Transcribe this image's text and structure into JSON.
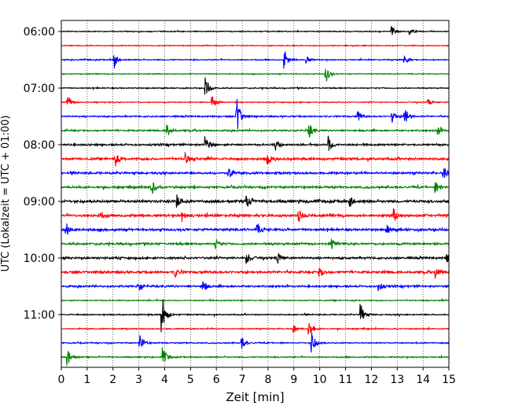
{
  "chart_data": {
    "type": "line",
    "title": "",
    "xlabel": "Zeit  [min]",
    "ylabel": "UTC (Lokalzeit = UTC + 01:00)",
    "xlim": [
      0,
      15
    ],
    "x_ticks": [
      "0",
      "1",
      "2",
      "3",
      "4",
      "5",
      "6",
      "7",
      "8",
      "9",
      "10",
      "11",
      "12",
      "13",
      "14",
      "15"
    ],
    "y_tick_labels": [
      "06:00",
      "07:00",
      "08:00",
      "09:00",
      "10:00",
      "11:00"
    ],
    "grid": "vertical-dotted",
    "trace_colors": [
      "#000000",
      "#ff0000",
      "#0000ff",
      "#008000"
    ],
    "traces": [
      {
        "start": "06:00",
        "amp": 0.22,
        "events": [
          [
            12.8,
            0.6
          ],
          [
            13.5,
            0.4
          ]
        ]
      },
      {
        "start": "06:15",
        "amp": 0.2,
        "events": []
      },
      {
        "start": "06:30",
        "amp": 0.25,
        "events": [
          [
            2.05,
            1.0
          ],
          [
            8.65,
            1.0
          ],
          [
            9.5,
            0.4
          ],
          [
            13.3,
            0.6
          ]
        ]
      },
      {
        "start": "06:45",
        "amp": 0.2,
        "events": [
          [
            10.25,
            1.0
          ]
        ]
      },
      {
        "start": "07:00",
        "amp": 0.25,
        "events": [
          [
            5.6,
            1.2
          ]
        ]
      },
      {
        "start": "07:15",
        "amp": 0.22,
        "events": [
          [
            0.25,
            0.8
          ],
          [
            5.85,
            0.7
          ],
          [
            14.2,
            0.4
          ]
        ]
      },
      {
        "start": "07:30",
        "amp": 0.35,
        "events": [
          [
            6.8,
            2.5
          ],
          [
            11.5,
            0.6
          ],
          [
            13.3,
            1.0
          ],
          [
            12.8,
            0.7
          ]
        ]
      },
      {
        "start": "07:45",
        "amp": 0.38,
        "events": [
          [
            4.1,
            0.8
          ],
          [
            9.6,
            0.7
          ],
          [
            14.6,
            0.5
          ]
        ]
      },
      {
        "start": "08:00",
        "amp": 0.45,
        "events": [
          [
            5.6,
            0.9
          ],
          [
            10.35,
            1.0
          ],
          [
            8.3,
            0.6
          ]
        ]
      },
      {
        "start": "08:15",
        "amp": 0.55,
        "events": [
          [
            2.1,
            0.8
          ],
          [
            4.8,
            0.7
          ],
          [
            8.0,
            0.6
          ]
        ]
      },
      {
        "start": "08:30",
        "amp": 0.5,
        "events": [
          [
            6.5,
            0.6
          ],
          [
            14.8,
            0.8
          ]
        ]
      },
      {
        "start": "08:45",
        "amp": 0.5,
        "events": [
          [
            3.5,
            0.8
          ],
          [
            14.5,
            0.6
          ]
        ]
      },
      {
        "start": "09:00",
        "amp": 0.62,
        "events": [
          [
            4.5,
            0.7
          ],
          [
            7.2,
            0.7
          ],
          [
            11.2,
            0.6
          ]
        ]
      },
      {
        "start": "09:15",
        "amp": 0.6,
        "events": [
          [
            1.5,
            0.6
          ],
          [
            4.7,
            0.6
          ],
          [
            9.2,
            0.6
          ],
          [
            12.9,
            0.7
          ]
        ]
      },
      {
        "start": "09:30",
        "amp": 0.55,
        "events": [
          [
            0.2,
            0.8
          ],
          [
            7.6,
            0.7
          ],
          [
            12.6,
            0.6
          ]
        ]
      },
      {
        "start": "09:45",
        "amp": 0.48,
        "events": [
          [
            6.0,
            0.6
          ],
          [
            10.5,
            0.5
          ]
        ]
      },
      {
        "start": "10:00",
        "amp": 0.5,
        "events": [
          [
            7.2,
            0.8
          ],
          [
            8.4,
            0.6
          ],
          [
            14.9,
            0.6
          ]
        ]
      },
      {
        "start": "10:15",
        "amp": 0.55,
        "events": [
          [
            4.4,
            0.6
          ],
          [
            10.0,
            0.6
          ],
          [
            14.5,
            0.7
          ]
        ]
      },
      {
        "start": "10:30",
        "amp": 0.45,
        "events": [
          [
            3.0,
            0.6
          ],
          [
            5.5,
            0.6
          ],
          [
            12.3,
            0.5
          ]
        ]
      },
      {
        "start": "10:45",
        "amp": 0.25,
        "events": []
      },
      {
        "start": "11:00",
        "amp": 0.28,
        "events": [
          [
            3.9,
            2.6
          ],
          [
            11.6,
            1.2
          ]
        ]
      },
      {
        "start": "11:15",
        "amp": 0.25,
        "events": [
          [
            9.6,
            1.0
          ],
          [
            9.0,
            0.5
          ]
        ]
      },
      {
        "start": "11:30",
        "amp": 0.28,
        "events": [
          [
            3.05,
            1.0
          ],
          [
            7.0,
            0.6
          ],
          [
            9.7,
            1.3
          ]
        ]
      },
      {
        "start": "11:45",
        "amp": 0.28,
        "events": [
          [
            0.25,
            1.0
          ],
          [
            3.95,
            1.1
          ]
        ]
      }
    ]
  }
}
